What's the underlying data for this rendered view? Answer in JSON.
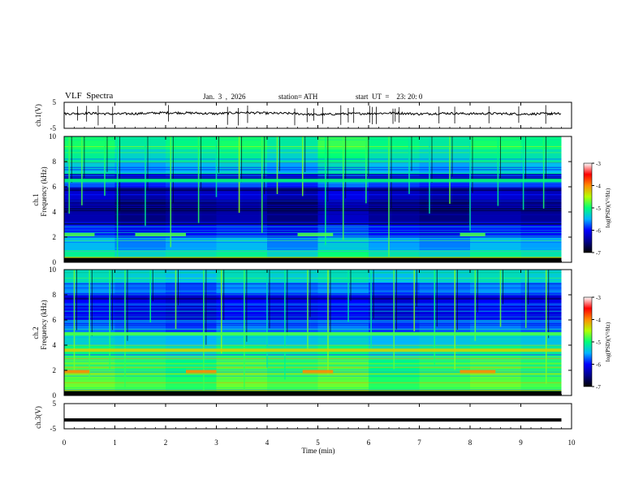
{
  "header": {
    "title": "VLF  Spectra",
    "date": "Jan.  3  ,  2026",
    "station": "station= ATH",
    "start": "start  UT  =    23: 20: 0"
  },
  "panels": {
    "ch1_wave": {
      "ylabel": "ch.1(V)",
      "yticks": [
        "5",
        "-5"
      ]
    },
    "ch1_spec": {
      "ylabel_top": "ch.1",
      "ylabel_bottom": "Frequency  (kHz)",
      "yticks": [
        "10",
        "8",
        "6",
        "4",
        "2",
        "0"
      ]
    },
    "ch2_spec": {
      "ylabel_top": "ch.2",
      "ylabel_bottom": "Frequency  (kHz)",
      "yticks": [
        "10",
        "8",
        "6",
        "4",
        "2",
        "0"
      ]
    },
    "ch3_wave": {
      "ylabel": "ch.3(V)",
      "yticks": [
        "5",
        "-5"
      ]
    }
  },
  "colorbar": {
    "label": "log(PSD)(V²/Hz)",
    "ticks": [
      "-3",
      "-4",
      "-5",
      "-6",
      "-7"
    ],
    "colors": [
      "#ffffff",
      "#ff0000",
      "#ffff00",
      "#00ff00",
      "#00ffff",
      "#0000ff",
      "#000000"
    ]
  },
  "xaxis": {
    "label": "Time  (min)",
    "ticks": [
      "0",
      "1",
      "2",
      "3",
      "4",
      "5",
      "6",
      "7",
      "8",
      "9",
      "10"
    ]
  },
  "chart_data": [
    {
      "type": "line",
      "title": "VLF  Spectra",
      "ylabel": "ch.1(V)",
      "xlabel": "Time  (min)",
      "xlim": [
        0,
        10
      ],
      "ylim": [
        -5,
        5
      ],
      "x": [
        0,
        0.5,
        1,
        1.5,
        2,
        2.5,
        3,
        3.5,
        4,
        4.5,
        5,
        5.5,
        6,
        6.5,
        7,
        7.5,
        8,
        8.5,
        9,
        9.5,
        9.8
      ],
      "values": [
        0.6,
        0.8,
        0.5,
        0.7,
        1.0,
        0.9,
        0.6,
        1.1,
        0.8,
        0.7,
        0.2,
        0.6,
        0.7,
        0.9,
        0.5,
        0.8,
        0.6,
        0.7,
        0.5,
        0.6,
        0.6
      ]
    },
    {
      "type": "heatmap",
      "ylabel": "ch.1  Frequency  (kHz)",
      "xlim": [
        0,
        10
      ],
      "ylim": [
        0,
        10
      ],
      "data_end_min": 9.8,
      "color_range": [
        -7,
        -3
      ],
      "freq_bands_khz": [
        0,
        1,
        2,
        3,
        4,
        5,
        6,
        7,
        8,
        9,
        10
      ],
      "band_log_psd": [
        -5.0,
        -5.4,
        -5.7,
        -6.3,
        -6.6,
        -6.5,
        -6.1,
        -5.6,
        -5.3,
        -5.1,
        -5.0
      ],
      "time_segments_min": [
        0,
        1,
        2,
        3,
        4,
        5,
        6,
        7,
        8,
        9,
        9.8
      ],
      "segment_offset": [
        0.1,
        -0.1,
        0.0,
        0.1,
        -0.1,
        0.2,
        0.0,
        -0.1,
        0.1,
        0.0
      ],
      "bursts_min": [
        0.1,
        0.35,
        0.8,
        1.05,
        1.6,
        2.1,
        2.65,
        3.0,
        3.45,
        3.9,
        4.2,
        4.7,
        5.15,
        5.5,
        5.95,
        6.4,
        6.8,
        7.2,
        7.6,
        8.0,
        8.55,
        9.05,
        9.45
      ],
      "tone_bands_khz": [
        {
          "khz": 2.2,
          "log_psd": -4.8,
          "intervals_min": [
            [
              0,
              0.6
            ],
            [
              1.4,
              2.4
            ],
            [
              4.6,
              5.3
            ],
            [
              7.8,
              8.3
            ]
          ]
        },
        {
          "khz": 6.5,
          "log_psd": -5.0,
          "intervals_min": [
            [
              0,
              9.8
            ]
          ]
        },
        {
          "khz": 0.3,
          "log_psd": -4.3,
          "intervals_min": [
            [
              0,
              9.8
            ]
          ]
        }
      ]
    },
    {
      "type": "heatmap",
      "ylabel": "ch.2  Frequency  (kHz)",
      "xlim": [
        0,
        10
      ],
      "ylim": [
        0,
        10
      ],
      "data_end_min": 9.8,
      "color_range": [
        -7,
        -3
      ],
      "freq_bands_khz": [
        0,
        1,
        2,
        3,
        4,
        5,
        6,
        7,
        8,
        9,
        10
      ],
      "band_log_psd": [
        -4.7,
        -4.9,
        -4.8,
        -5.0,
        -5.3,
        -5.5,
        -6.0,
        -6.3,
        -5.9,
        -5.5,
        -5.2
      ],
      "time_segments_min": [
        0,
        1,
        2,
        3,
        4,
        5,
        6,
        7,
        8,
        9,
        9.8
      ],
      "segment_offset": [
        0.1,
        0.0,
        -0.1,
        0.1,
        0.0,
        0.1,
        -0.1,
        0.0,
        0.1,
        0.0
      ],
      "bursts_min": [
        0.2,
        0.5,
        0.9,
        1.2,
        1.7,
        2.2,
        2.75,
        3.1,
        3.55,
        4.0,
        4.35,
        4.8,
        5.2,
        5.6,
        6.05,
        6.5,
        6.9,
        7.3,
        7.7,
        8.1,
        8.6,
        9.1,
        9.5
      ],
      "tone_bands_khz": [
        {
          "khz": 1.9,
          "log_psd": -4.0,
          "intervals_min": [
            [
              0,
              0.5
            ],
            [
              2.4,
              3.0
            ],
            [
              4.7,
              5.3
            ],
            [
              7.8,
              8.5
            ]
          ]
        },
        {
          "khz": 3.6,
          "log_psd": -4.3,
          "intervals_min": [
            [
              0,
              9.8
            ]
          ]
        },
        {
          "khz": 4.9,
          "log_psd": -4.8,
          "intervals_min": [
            [
              0,
              9.8
            ]
          ]
        }
      ]
    },
    {
      "type": "line",
      "ylabel": "ch.3(V)",
      "xlabel": "Time  (min)",
      "xlim": [
        0,
        10
      ],
      "ylim": [
        -5,
        5
      ],
      "x": [
        0,
        9.8
      ],
      "values": [
        -1.5,
        -1.5
      ]
    }
  ]
}
